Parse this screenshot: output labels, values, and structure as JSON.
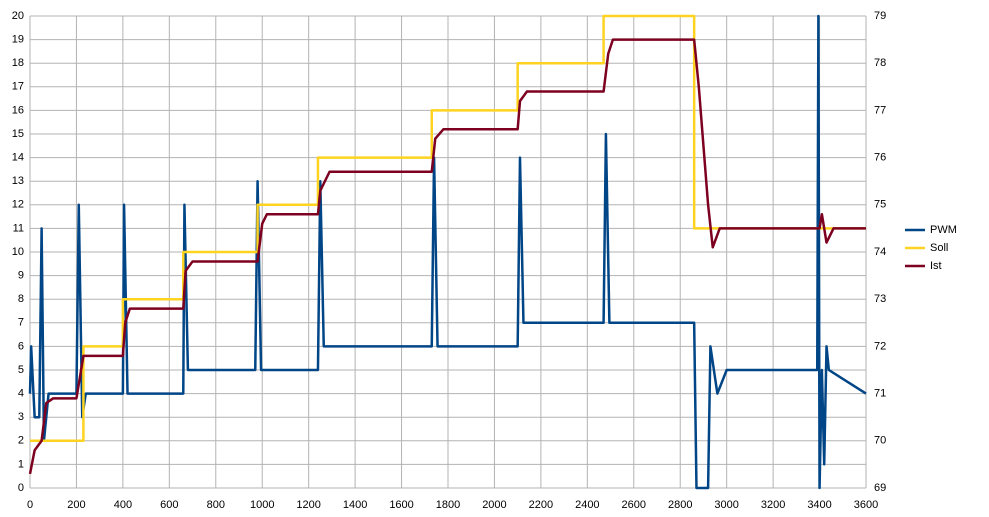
{
  "chart_data": {
    "type": "line",
    "xlim": [
      0,
      3600
    ],
    "xticks": [
      0,
      200,
      400,
      600,
      800,
      1000,
      1200,
      1400,
      1600,
      1800,
      2000,
      2200,
      2400,
      2600,
      2800,
      3000,
      3200,
      3400,
      3600
    ],
    "ylim": [
      0,
      20
    ],
    "yticks": [
      0,
      1,
      2,
      3,
      4,
      5,
      6,
      7,
      8,
      9,
      10,
      11,
      12,
      13,
      14,
      15,
      16,
      17,
      18,
      19,
      20
    ],
    "y2lim": [
      69,
      79
    ],
    "y2ticks": [
      69,
      70,
      71,
      72,
      73,
      74,
      75,
      76,
      77,
      78,
      79
    ],
    "grid": true,
    "legend": "right",
    "series": [
      {
        "name": "PWM",
        "color": "#004586",
        "x": [
          0,
          5,
          20,
          40,
          50,
          60,
          80,
          200,
          210,
          225,
          240,
          400,
          405,
          420,
          660,
          665,
          680,
          970,
          980,
          995,
          1240,
          1250,
          1265,
          1730,
          1740,
          1755,
          2100,
          2110,
          2125,
          2470,
          2480,
          2495,
          2860,
          2870,
          2920,
          2930,
          2960,
          3000,
          3390,
          3395,
          3400,
          3410,
          3420,
          3430,
          3440,
          3600
        ],
        "values": [
          4,
          6,
          3,
          3,
          11,
          2,
          4,
          4,
          12,
          3,
          4,
          4,
          12,
          4,
          4,
          12,
          5,
          5,
          13,
          5,
          5,
          13,
          6,
          6,
          14,
          6,
          6,
          14,
          7,
          7,
          15,
          7,
          7,
          0,
          0,
          6,
          4,
          5,
          5,
          20,
          0,
          5,
          1,
          6,
          5,
          4
        ]
      },
      {
        "name": "Soll",
        "color": "#ffd320",
        "axis": "y2",
        "x": [
          0,
          230,
          230,
          400,
          400,
          660,
          660,
          980,
          980,
          1240,
          1240,
          1730,
          1730,
          2100,
          2100,
          2470,
          2470,
          2860,
          2860,
          3600
        ],
        "values": [
          70,
          70,
          72,
          72,
          73,
          73,
          74,
          74,
          75,
          75,
          76,
          76,
          77,
          77,
          78,
          78,
          79,
          79,
          74.5,
          74.5
        ]
      },
      {
        "name": "Ist",
        "color": "#7e0021",
        "axis": "y2",
        "x": [
          0,
          20,
          50,
          70,
          100,
          200,
          230,
          250,
          400,
          410,
          430,
          660,
          670,
          700,
          980,
          1000,
          1020,
          1240,
          1250,
          1290,
          1730,
          1745,
          1780,
          2100,
          2110,
          2140,
          2470,
          2490,
          2510,
          2860,
          2880,
          2920,
          2940,
          2970,
          3400,
          3410,
          3430,
          3460,
          3600
        ],
        "values": [
          69.3,
          69.8,
          70,
          70.8,
          70.9,
          70.9,
          71.8,
          71.8,
          71.8,
          72.5,
          72.8,
          72.8,
          73.6,
          73.8,
          73.8,
          74.6,
          74.8,
          74.8,
          75.3,
          75.7,
          75.7,
          76.4,
          76.6,
          76.6,
          77.2,
          77.4,
          77.4,
          78.2,
          78.5,
          78.5,
          77.5,
          75,
          74.1,
          74.5,
          74.5,
          74.8,
          74.2,
          74.5,
          74.5
        ]
      }
    ]
  }
}
